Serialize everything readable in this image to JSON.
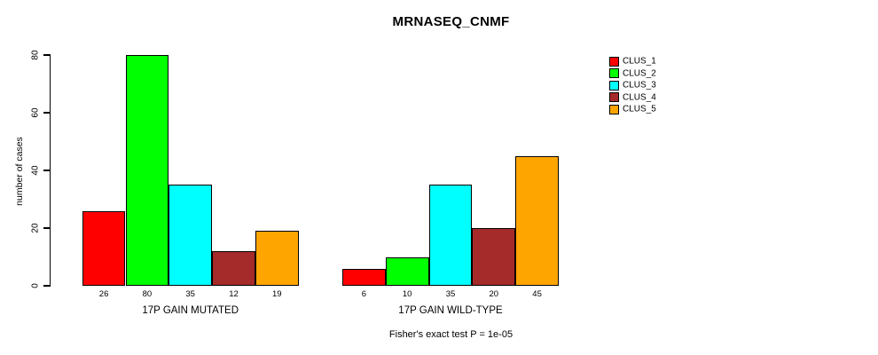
{
  "chart_data": {
    "type": "bar",
    "title": "MRNASEQ_CNMF",
    "ylabel": "number of cases",
    "xlabel": "",
    "ylim": [
      0,
      80
    ],
    "yticks": [
      0,
      20,
      40,
      60,
      80
    ],
    "grid": false,
    "legend_position": "right",
    "bar_value_labels_shown": true,
    "series": [
      {
        "name": "CLUS_1",
        "color": "#ff0000"
      },
      {
        "name": "CLUS_2",
        "color": "#00ff00"
      },
      {
        "name": "CLUS_3",
        "color": "#00ffff"
      },
      {
        "name": "CLUS_4",
        "color": "#a52a2a"
      },
      {
        "name": "CLUS_5",
        "color": "#ffa500"
      }
    ],
    "groups": [
      {
        "label": "17P GAIN MUTATED",
        "values": [
          26,
          80,
          35,
          12,
          19
        ]
      },
      {
        "label": "17P GAIN WILD-TYPE",
        "values": [
          6,
          10,
          35,
          20,
          45
        ]
      }
    ],
    "caption": "Fisher's exact test P = 1e-05",
    "text_color": "#000000",
    "background_color": "#ffffff"
  }
}
